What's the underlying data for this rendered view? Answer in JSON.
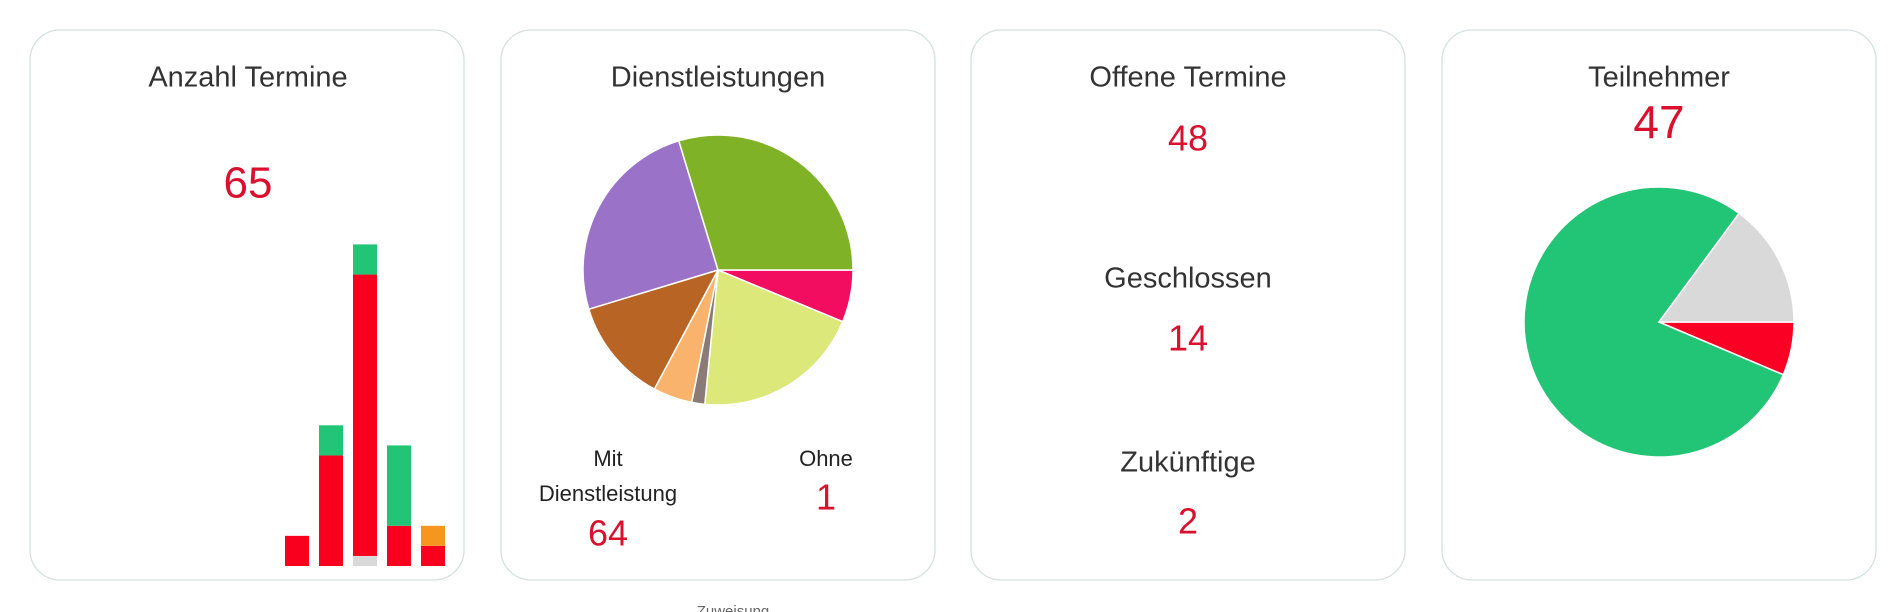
{
  "cards": [
    {
      "title": "Anzahl Termine",
      "value": 65
    },
    {
      "title": "Dienstleistungen",
      "stats": [
        {
          "label_lines": [
            "Mit",
            "Dienstleistung"
          ],
          "value": 64
        },
        {
          "label_lines": [
            "Ohne"
          ],
          "value": 1
        }
      ]
    },
    {
      "stats": [
        {
          "title": "Offene Termine",
          "value": 48
        },
        {
          "title": "Geschlossen",
          "value": 14
        },
        {
          "title": "Zukünftige",
          "value": 2
        }
      ]
    },
    {
      "title": "Teilnehmer",
      "value": 47
    }
  ],
  "footer": {
    "label": "Zuweisung"
  },
  "chart_data": [
    {
      "type": "bar",
      "stacked": true,
      "categories": [
        null,
        null,
        null,
        null,
        null
      ],
      "series": [
        {
          "color": "#d9d9d9",
          "values": [
            0,
            0,
            1,
            0,
            0
          ]
        },
        {
          "color": "#f9001f",
          "values": [
            3,
            11,
            28,
            4,
            2
          ]
        },
        {
          "color": "#22c475",
          "values": [
            0,
            3,
            3,
            8,
            0
          ]
        },
        {
          "color": "#f7961e",
          "values": [
            0,
            0,
            0,
            0,
            2
          ]
        }
      ]
    },
    {
      "type": "pie",
      "values": [
        4,
        13,
        1,
        3,
        8,
        16,
        19
      ],
      "colors": [
        "#f20d61",
        "#dde87a",
        "#8a7b77",
        "#f9b36d",
        "#b76425",
        "#9a72c8",
        "#80b228"
      ]
    },
    {
      "type": "pie",
      "values": [
        3,
        37,
        7
      ],
      "colors": [
        "#fa0024",
        "#22c475",
        "#d9d9d9"
      ]
    }
  ]
}
